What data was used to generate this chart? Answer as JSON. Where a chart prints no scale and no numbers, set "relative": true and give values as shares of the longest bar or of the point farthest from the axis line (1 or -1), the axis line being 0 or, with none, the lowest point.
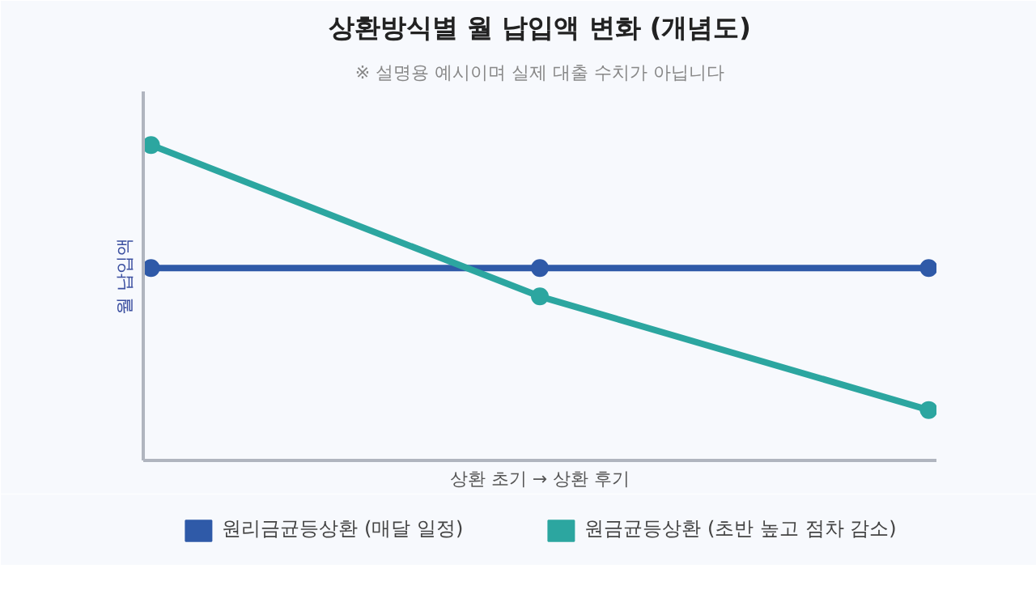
{
  "chart_data": {
    "type": "line",
    "title": "상환방식별 월 납입액 변화 (개념도)",
    "subtitle": "※ 설명용 예시이며 실제 대출 수치가 아닙니다",
    "xlabel": "상환 초기 → 상환 후기",
    "ylabel": "월 납입액",
    "relative": true,
    "categories": [
      null,
      null,
      null
    ],
    "series": [
      {
        "name": "원리금균등상환 (매달 일정)",
        "color": "#2f5aa8",
        "values": [
          0.61,
          0.61,
          0.61
        ]
      },
      {
        "name": "원금균등상환 (초반 높고 점차 감소)",
        "color": "#2ca6a0",
        "values": [
          1,
          0.52,
          0.16
        ]
      }
    ],
    "marker": "circle",
    "line_style": "solid",
    "legend": "bottom"
  }
}
